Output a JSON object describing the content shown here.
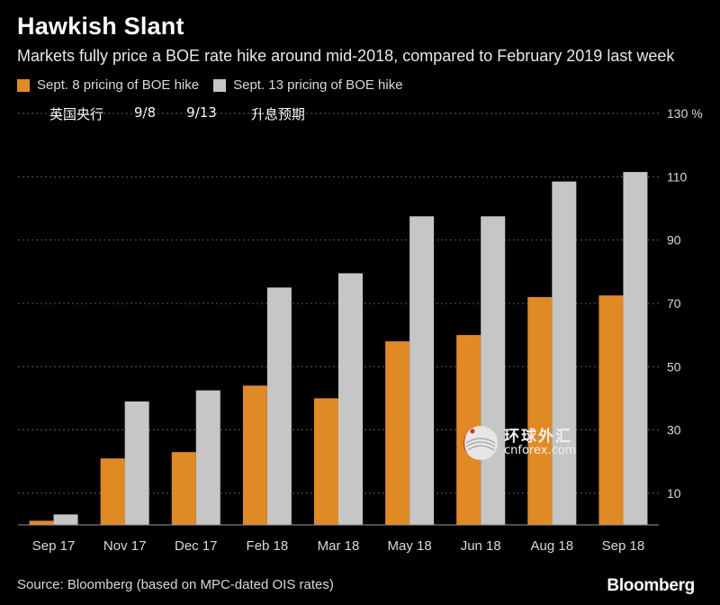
{
  "title": "Hawkish Slant",
  "subtitle": "Markets fully price a BOE rate hike around mid-2018, compared to February 2019 last week",
  "annotation": [
    "英国央行",
    "9/8",
    "9/13",
    "升息预期"
  ],
  "source": "Source: Bloomberg (based on MPC-dated OIS rates)",
  "brand": "Bloomberg",
  "watermark": {
    "cn": "环球外汇",
    "en": "cnforex.com"
  },
  "colors": {
    "series1": "#e08a26",
    "series2": "#c6c6c6",
    "grid": "#5a5a5a",
    "background": "#000000"
  },
  "chart_data": {
    "type": "bar",
    "categories": [
      "Sep 17",
      "Nov 17",
      "Dec 17",
      "Feb 18",
      "Mar 18",
      "May 18",
      "Jun 18",
      "Aug 18",
      "Sep 18"
    ],
    "series": [
      {
        "name": "Sept. 8 pricing of BOE hike",
        "values": [
          1.3,
          21,
          23,
          44,
          40,
          58,
          60,
          72,
          72.5
        ]
      },
      {
        "name": "Sept. 13 pricing of BOE hike",
        "values": [
          3.3,
          39,
          42.5,
          75,
          79.5,
          97.5,
          97.5,
          108.5,
          111.5
        ]
      }
    ],
    "yticks": [
      10,
      30,
      50,
      70,
      90,
      110,
      130
    ],
    "ytick_labels": [
      "10",
      "30",
      "50",
      "70",
      "90",
      "110",
      "130 %"
    ],
    "ylim": [
      0,
      130
    ],
    "grid": "dotted horizontal",
    "legend": "top-left",
    "y_axis_side": "right"
  }
}
